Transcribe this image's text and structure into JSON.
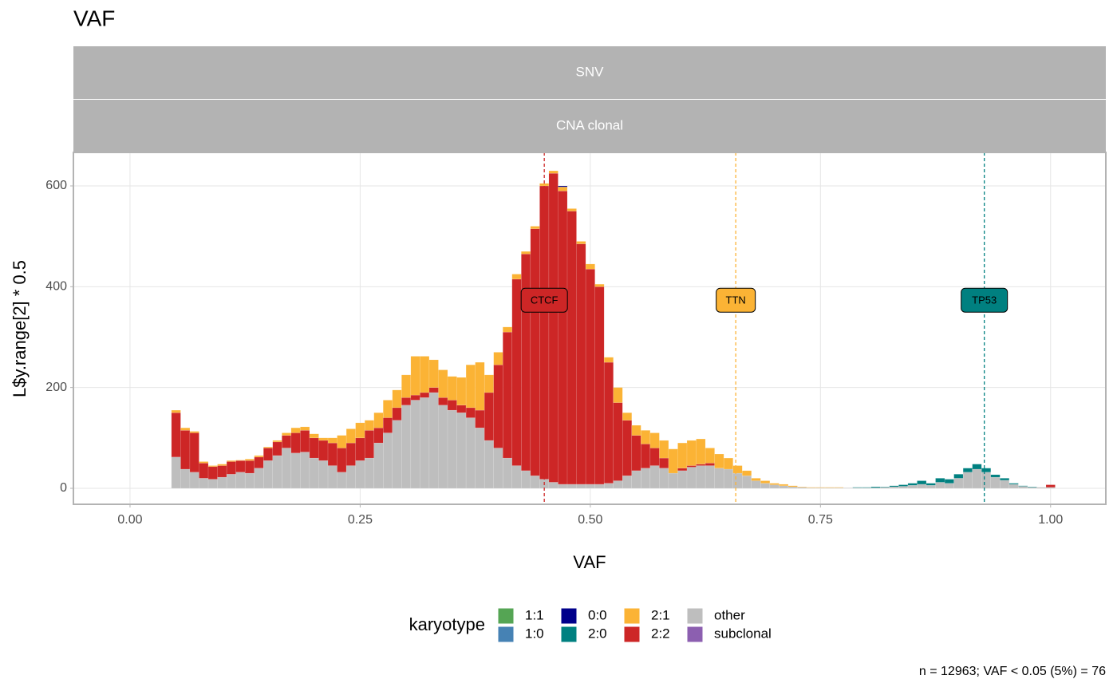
{
  "chart_data": {
    "type": "histogram",
    "title": "VAF",
    "strips": [
      "SNV",
      "CNA clonal"
    ],
    "x_label": "VAF",
    "y_label": "L$y.range[2] * 0.5",
    "legend_title": "karyotype",
    "caption": "n = 12963; VAF < 0.05 (5%) = 76",
    "xlim": [
      -0.0615,
      1.06
    ],
    "ylim": [
      -31.7,
      666.5
    ],
    "xticks": [
      {
        "value": 0,
        "label": "0.00"
      },
      {
        "value": 0.25,
        "label": "0.25"
      },
      {
        "value": 0.5,
        "label": "0.50"
      },
      {
        "value": 0.75,
        "label": "0.75"
      },
      {
        "value": 1,
        "label": "1.00"
      }
    ],
    "yticks": [
      0,
      200,
      400,
      600
    ],
    "grid": true,
    "bins": [
      0.045,
      0.055,
      0.065,
      0.075,
      0.085,
      0.095,
      0.105,
      0.115,
      0.125,
      0.135,
      0.145,
      0.155,
      0.165,
      0.175,
      0.185,
      0.195,
      0.205,
      0.215,
      0.225,
      0.235,
      0.245,
      0.255,
      0.265,
      0.275,
      0.285,
      0.295,
      0.305,
      0.315,
      0.325,
      0.335,
      0.345,
      0.355,
      0.365,
      0.375,
      0.385,
      0.395,
      0.405,
      0.415,
      0.425,
      0.435,
      0.445,
      0.455,
      0.465,
      0.475,
      0.485,
      0.495,
      0.505,
      0.515,
      0.525,
      0.535,
      0.545,
      0.555,
      0.565,
      0.575,
      0.585,
      0.595,
      0.605,
      0.615,
      0.625,
      0.635,
      0.645,
      0.655,
      0.665,
      0.675,
      0.685,
      0.695,
      0.705,
      0.715,
      0.725,
      0.735,
      0.745,
      0.755,
      0.765,
      0.775,
      0.785,
      0.795,
      0.805,
      0.815,
      0.825,
      0.835,
      0.845,
      0.855,
      0.865,
      0.875,
      0.885,
      0.895,
      0.905,
      0.915,
      0.925,
      0.935,
      0.945,
      0.955,
      0.965,
      0.975,
      0.985,
      0.995,
      1.005
    ],
    "series": [
      {
        "name": "1:1",
        "color": "#55a554",
        "values": [
          0,
          0,
          0,
          0,
          0,
          0,
          0,
          0,
          0,
          0,
          0,
          0,
          0,
          0,
          0,
          0,
          0,
          0,
          0,
          0,
          0,
          0,
          0,
          0,
          0,
          0,
          0,
          0,
          0,
          0,
          0,
          0,
          0,
          0,
          0,
          0,
          0,
          0,
          0,
          0,
          0,
          0,
          0,
          0,
          0,
          0,
          0,
          0,
          0,
          0,
          0,
          0,
          0,
          0,
          0,
          0,
          0,
          0,
          0,
          0,
          0,
          0,
          0,
          0,
          0,
          0,
          0,
          0,
          0,
          0,
          0,
          0,
          0,
          0,
          0,
          0,
          0,
          0,
          0,
          0,
          0,
          0,
          0,
          0,
          0,
          0,
          0,
          0,
          0,
          0,
          0,
          0,
          0,
          0,
          0,
          0
        ]
      },
      {
        "name": "1:0",
        "color": "#4682b4",
        "values": [
          0,
          0,
          0,
          0,
          0,
          0,
          0,
          0,
          0,
          0,
          0,
          0,
          0,
          0,
          0,
          0,
          0,
          0,
          0,
          0,
          0,
          0,
          0,
          0,
          0,
          0,
          0,
          0,
          0,
          0,
          0,
          0,
          0,
          0,
          0,
          0,
          0,
          0,
          0,
          0,
          0,
          0,
          0,
          0,
          0,
          0,
          0,
          0,
          0,
          0,
          0,
          0,
          0,
          0,
          0,
          0,
          0,
          0,
          0,
          0,
          0,
          0,
          0,
          0,
          0,
          0,
          0,
          0,
          0,
          0,
          0,
          0,
          0,
          0,
          0,
          0,
          0,
          0,
          0,
          0,
          0,
          0,
          0,
          0,
          0,
          0,
          0,
          0,
          0,
          0,
          0,
          0,
          0,
          0,
          0,
          0
        ]
      },
      {
        "name": "0:0",
        "color": "#00008b",
        "values": [
          0,
          0,
          0,
          0,
          0,
          0,
          0,
          0,
          0,
          0,
          0,
          0,
          0,
          0,
          0,
          0,
          0,
          0,
          0,
          0,
          0,
          0,
          0,
          0,
          0,
          0,
          0,
          0,
          0,
          0,
          0,
          0,
          0,
          0,
          0,
          0,
          0,
          0,
          0,
          0,
          0,
          0,
          2,
          0,
          0,
          0,
          0,
          0,
          0,
          0,
          0,
          0,
          0,
          0,
          0,
          0,
          0,
          0,
          0,
          0,
          0,
          0,
          0,
          0,
          0,
          0,
          0,
          0,
          0,
          0,
          0,
          0,
          0,
          0,
          0,
          0,
          0,
          0,
          0,
          0,
          0,
          0,
          0,
          0,
          0,
          0,
          0,
          0,
          0,
          0,
          0,
          0,
          0,
          0,
          0,
          0
        ]
      },
      {
        "name": "2:0",
        "color": "#008080",
        "values": [
          0,
          0,
          0,
          0,
          0,
          0,
          0,
          0,
          0,
          0,
          0,
          0,
          0,
          0,
          0,
          0,
          0,
          0,
          0,
          0,
          0,
          0,
          0,
          0,
          0,
          0,
          0,
          0,
          0,
          0,
          0,
          0,
          0,
          0,
          0,
          0,
          0,
          0,
          0,
          0,
          0,
          0,
          0,
          0,
          0,
          0,
          0,
          0,
          0,
          0,
          0,
          0,
          0,
          0,
          0,
          0,
          0,
          0,
          0,
          0,
          0,
          0,
          0,
          0,
          0,
          0,
          0,
          0,
          0,
          0,
          0,
          0,
          0,
          0,
          1,
          1,
          2,
          1,
          2,
          3,
          4,
          7,
          4,
          8,
          8,
          8,
          8,
          10,
          8,
          5,
          4,
          2,
          1,
          1,
          0,
          0
        ]
      },
      {
        "name": "2:1",
        "color": "#fbb335",
        "values": [
          5,
          5,
          3,
          3,
          2,
          3,
          2,
          1,
          3,
          3,
          2,
          3,
          5,
          10,
          7,
          8,
          5,
          10,
          25,
          28,
          30,
          20,
          30,
          35,
          35,
          45,
          77,
          72,
          55,
          55,
          47,
          55,
          85,
          95,
          35,
          25,
          10,
          10,
          5,
          5,
          5,
          5,
          8,
          5,
          5,
          10,
          5,
          10,
          30,
          15,
          20,
          27,
          30,
          35,
          48,
          50,
          50,
          50,
          30,
          28,
          22,
          15,
          10,
          5,
          5,
          3,
          3,
          2,
          1,
          1,
          1,
          1,
          1,
          0,
          0,
          0,
          0,
          0,
          0,
          0,
          0,
          0,
          0,
          0,
          0,
          0,
          0,
          0,
          0,
          0,
          0,
          0,
          0,
          0,
          0,
          0
        ]
      },
      {
        "name": "2:2",
        "color": "#cd2626",
        "values": [
          88,
          77,
          78,
          30,
          25,
          23,
          25,
          23,
          25,
          22,
          25,
          27,
          25,
          40,
          43,
          40,
          40,
          45,
          48,
          45,
          45,
          55,
          30,
          30,
          25,
          15,
          10,
          10,
          10,
          15,
          20,
          15,
          20,
          35,
          95,
          165,
          250,
          370,
          430,
          490,
          582,
          613,
          582,
          542,
          477,
          427,
          392,
          240,
          155,
          110,
          70,
          48,
          35,
          20,
          0,
          5,
          3,
          3,
          5,
          0,
          0,
          0,
          0,
          0,
          0,
          0,
          0,
          0,
          0,
          0,
          0,
          0,
          0,
          0,
          0,
          0,
          0,
          0,
          0,
          0,
          0,
          0,
          0,
          0,
          0,
          0,
          0,
          0,
          0,
          0,
          0,
          0,
          0,
          0,
          0,
          5
        ]
      },
      {
        "name": "other",
        "color": "#bebebe",
        "values": [
          62,
          38,
          32,
          20,
          18,
          22,
          28,
          32,
          30,
          40,
          55,
          65,
          80,
          70,
          72,
          60,
          55,
          45,
          32,
          45,
          55,
          60,
          90,
          110,
          135,
          165,
          175,
          180,
          190,
          165,
          155,
          150,
          140,
          120,
          95,
          80,
          60,
          45,
          35,
          25,
          18,
          12,
          8,
          8,
          8,
          8,
          8,
          10,
          15,
          25,
          35,
          40,
          45,
          40,
          30,
          35,
          42,
          45,
          45,
          40,
          38,
          30,
          25,
          15,
          10,
          7,
          5,
          3,
          2,
          1,
          1,
          1,
          1,
          1,
          1,
          1,
          1,
          2,
          3,
          4,
          6,
          8,
          6,
          12,
          10,
          20,
          32,
          38,
          32,
          22,
          16,
          8,
          4,
          2,
          2,
          2
        ]
      },
      {
        "name": "subclonal",
        "color": "#8c5fb0",
        "values": [
          0,
          0,
          0,
          0,
          0,
          0,
          0,
          0,
          0,
          0,
          0,
          0,
          0,
          0,
          0,
          0,
          0,
          0,
          0,
          0,
          0,
          0,
          0,
          0,
          0,
          0,
          0,
          0,
          0,
          0,
          0,
          0,
          0,
          0,
          0,
          0,
          0,
          0,
          0,
          0,
          0,
          0,
          0,
          0,
          0,
          0,
          0,
          0,
          0,
          0,
          0,
          0,
          0,
          0,
          0,
          0,
          0,
          0,
          0,
          0,
          0,
          0,
          0,
          0,
          0,
          0,
          0,
          0,
          0,
          0,
          0,
          0,
          0,
          0,
          0,
          0,
          0,
          0,
          0,
          0,
          0,
          0,
          0,
          0,
          0,
          0,
          0,
          0,
          0,
          0,
          0,
          0,
          0,
          0,
          0,
          0
        ]
      }
    ],
    "annotations": [
      {
        "label": "CTCF",
        "x": 0.45,
        "color": "#cd2626"
      },
      {
        "label": "TTN",
        "x": 0.658,
        "color": "#fbb335"
      },
      {
        "label": "TP53",
        "x": 0.928,
        "color": "#008080"
      }
    ]
  }
}
